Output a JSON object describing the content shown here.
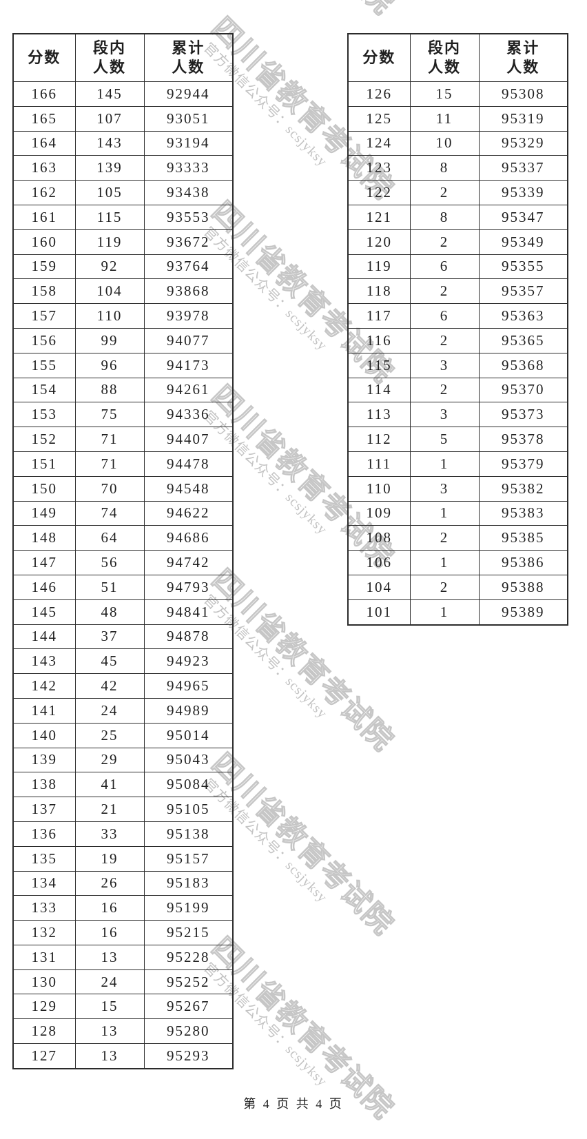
{
  "watermark": {
    "line1": "四川省教育考试院",
    "line2": "官方微信公众号：scsjyksy",
    "color": "#c6c6c6"
  },
  "footer": {
    "text": "第 4 页 共 4 页"
  },
  "tables": {
    "left": {
      "headers": [
        [
          "分数"
        ],
        [
          "段内",
          "人数"
        ],
        [
          "累计",
          "人数"
        ]
      ],
      "rows": [
        [
          "166",
          "145",
          "92944"
        ],
        [
          "165",
          "107",
          "93051"
        ],
        [
          "164",
          "143",
          "93194"
        ],
        [
          "163",
          "139",
          "93333"
        ],
        [
          "162",
          "105",
          "93438"
        ],
        [
          "161",
          "115",
          "93553"
        ],
        [
          "160",
          "119",
          "93672"
        ],
        [
          "159",
          "92",
          "93764"
        ],
        [
          "158",
          "104",
          "93868"
        ],
        [
          "157",
          "110",
          "93978"
        ],
        [
          "156",
          "99",
          "94077"
        ],
        [
          "155",
          "96",
          "94173"
        ],
        [
          "154",
          "88",
          "94261"
        ],
        [
          "153",
          "75",
          "94336"
        ],
        [
          "152",
          "71",
          "94407"
        ],
        [
          "151",
          "71",
          "94478"
        ],
        [
          "150",
          "70",
          "94548"
        ],
        [
          "149",
          "74",
          "94622"
        ],
        [
          "148",
          "64",
          "94686"
        ],
        [
          "147",
          "56",
          "94742"
        ],
        [
          "146",
          "51",
          "94793"
        ],
        [
          "145",
          "48",
          "94841"
        ],
        [
          "144",
          "37",
          "94878"
        ],
        [
          "143",
          "45",
          "94923"
        ],
        [
          "142",
          "42",
          "94965"
        ],
        [
          "141",
          "24",
          "94989"
        ],
        [
          "140",
          "25",
          "95014"
        ],
        [
          "139",
          "29",
          "95043"
        ],
        [
          "138",
          "41",
          "95084"
        ],
        [
          "137",
          "21",
          "95105"
        ],
        [
          "136",
          "33",
          "95138"
        ],
        [
          "135",
          "19",
          "95157"
        ],
        [
          "134",
          "26",
          "95183"
        ],
        [
          "133",
          "16",
          "95199"
        ],
        [
          "132",
          "16",
          "95215"
        ],
        [
          "131",
          "13",
          "95228"
        ],
        [
          "130",
          "24",
          "95252"
        ],
        [
          "129",
          "15",
          "95267"
        ],
        [
          "128",
          "13",
          "95280"
        ],
        [
          "127",
          "13",
          "95293"
        ]
      ]
    },
    "right": {
      "headers": [
        [
          "分数"
        ],
        [
          "段内",
          "人数"
        ],
        [
          "累计",
          "人数"
        ]
      ],
      "rows": [
        [
          "126",
          "15",
          "95308"
        ],
        [
          "125",
          "11",
          "95319"
        ],
        [
          "124",
          "10",
          "95329"
        ],
        [
          "123",
          "8",
          "95337"
        ],
        [
          "122",
          "2",
          "95339"
        ],
        [
          "121",
          "8",
          "95347"
        ],
        [
          "120",
          "2",
          "95349"
        ],
        [
          "119",
          "6",
          "95355"
        ],
        [
          "118",
          "2",
          "95357"
        ],
        [
          "117",
          "6",
          "95363"
        ],
        [
          "116",
          "2",
          "95365"
        ],
        [
          "115",
          "3",
          "95368"
        ],
        [
          "114",
          "2",
          "95370"
        ],
        [
          "113",
          "3",
          "95373"
        ],
        [
          "112",
          "5",
          "95378"
        ],
        [
          "111",
          "1",
          "95379"
        ],
        [
          "110",
          "3",
          "95382"
        ],
        [
          "109",
          "1",
          "95383"
        ],
        [
          "108",
          "2",
          "95385"
        ],
        [
          "106",
          "1",
          "95386"
        ],
        [
          "104",
          "2",
          "95388"
        ],
        [
          "101",
          "1",
          "95389"
        ]
      ]
    }
  }
}
